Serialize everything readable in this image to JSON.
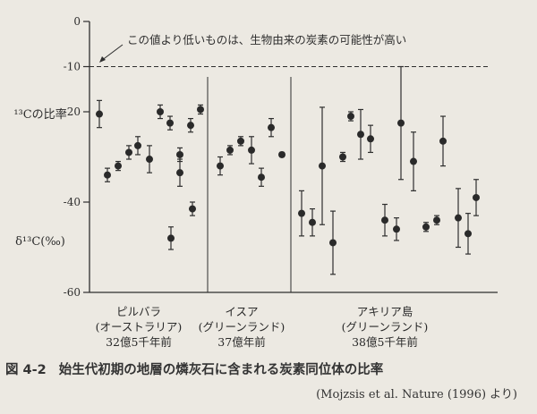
{
  "chart_data": {
    "type": "scatter",
    "ylabel_top": "¹³Cの比率",
    "ylabel_bottom": "δ¹³C(‰)",
    "ylim": [
      -60,
      0
    ],
    "yticks": [
      {
        "value": 0,
        "label": "0"
      },
      {
        "value": -10,
        "label": "-10"
      },
      {
        "value": -20,
        "label": "-20"
      },
      {
        "value": -40,
        "label": "-40"
      },
      {
        "value": -60,
        "label": "-60"
      }
    ],
    "threshold": {
      "value": -10,
      "label": "この値より低いものは、生物由来の炭素の可能性が高い"
    },
    "groups": [
      {
        "name": "ピルバラ",
        "region": "(オーストラリア)",
        "age": "32億5千年前",
        "points": [
          {
            "y": -20.5,
            "low": -23.5,
            "high": -17.5
          },
          {
            "y": -34,
            "low": -35.5,
            "high": -32.5
          },
          {
            "y": -32,
            "low": -33,
            "high": -31
          },
          {
            "y": -29,
            "low": -30.5,
            "high": -27.5
          },
          {
            "y": -27.5,
            "low": -29.5,
            "high": -25.5
          },
          {
            "y": -30.5,
            "low": -33.5,
            "high": -27.5
          },
          {
            "y": -20,
            "low": -21.5,
            "high": -18.5
          },
          {
            "y": -22.5,
            "low": -24,
            "high": -21
          },
          {
            "y": -29.5,
            "low": -31,
            "high": -28
          },
          {
            "y": -48,
            "low": -50.5,
            "high": -45.5
          },
          {
            "y": -33.5,
            "low": -36.5,
            "high": -30.5
          },
          {
            "y": -23,
            "low": -24.5,
            "high": -21.5
          },
          {
            "y": -41.5,
            "low": -43,
            "high": -40
          },
          {
            "y": -19.5,
            "low": -20.5,
            "high": -18.5
          }
        ]
      },
      {
        "name": "イスア",
        "region": "(グリーンランド)",
        "age": "37億年前",
        "points": [
          {
            "y": -32,
            "low": -34,
            "high": -30
          },
          {
            "y": -28.5,
            "low": -29.5,
            "high": -27.5
          },
          {
            "y": -26.5,
            "low": -27.5,
            "high": -25.5
          },
          {
            "y": -28.5,
            "low": -31.5,
            "high": -25.5
          },
          {
            "y": -34.5,
            "low": -36.5,
            "high": -32.5
          },
          {
            "y": -23.5,
            "low": -25.5,
            "high": -21.5
          },
          {
            "y": -29.5,
            "low": -30,
            "high": -29
          }
        ]
      },
      {
        "name": "アキリア島",
        "region": "(グリーンランド)",
        "age": "38億5千年前",
        "points": [
          {
            "y": -42.5,
            "low": -47.5,
            "high": -37.5
          },
          {
            "y": -44.5,
            "low": -47.5,
            "high": -41.5
          },
          {
            "y": -32,
            "low": -45,
            "high": -19
          },
          {
            "y": -49,
            "low": -56,
            "high": -42
          },
          {
            "y": -30,
            "low": -31,
            "high": -29
          },
          {
            "y": -21,
            "low": -22,
            "high": -20
          },
          {
            "y": -25,
            "low": -30.5,
            "high": -19.5
          },
          {
            "y": -26,
            "low": -29,
            "high": -23
          },
          {
            "y": -44,
            "low": -47.5,
            "high": -40.5
          },
          {
            "y": -46,
            "low": -48.5,
            "high": -43.5
          },
          {
            "y": -22.5,
            "low": -35,
            "high": -10
          },
          {
            "y": -31,
            "low": -37.5,
            "high": -24.5
          },
          {
            "y": -45.5,
            "low": -46.5,
            "high": -44.5
          },
          {
            "y": -44,
            "low": -45,
            "high": -43
          },
          {
            "y": -26.5,
            "low": -32,
            "high": -21
          },
          {
            "y": -43.5,
            "low": -50,
            "high": -37
          },
          {
            "y": -47,
            "low": -51.5,
            "high": -42.5
          },
          {
            "y": -39,
            "low": -43,
            "high": -35
          }
        ]
      }
    ]
  },
  "caption": {
    "number": "図 4-2",
    "text": "始生代初期の地層の燐灰石に含まれる炭素同位体の比率"
  },
  "source": "(Mojzsis et al. Nature (1996) より)"
}
